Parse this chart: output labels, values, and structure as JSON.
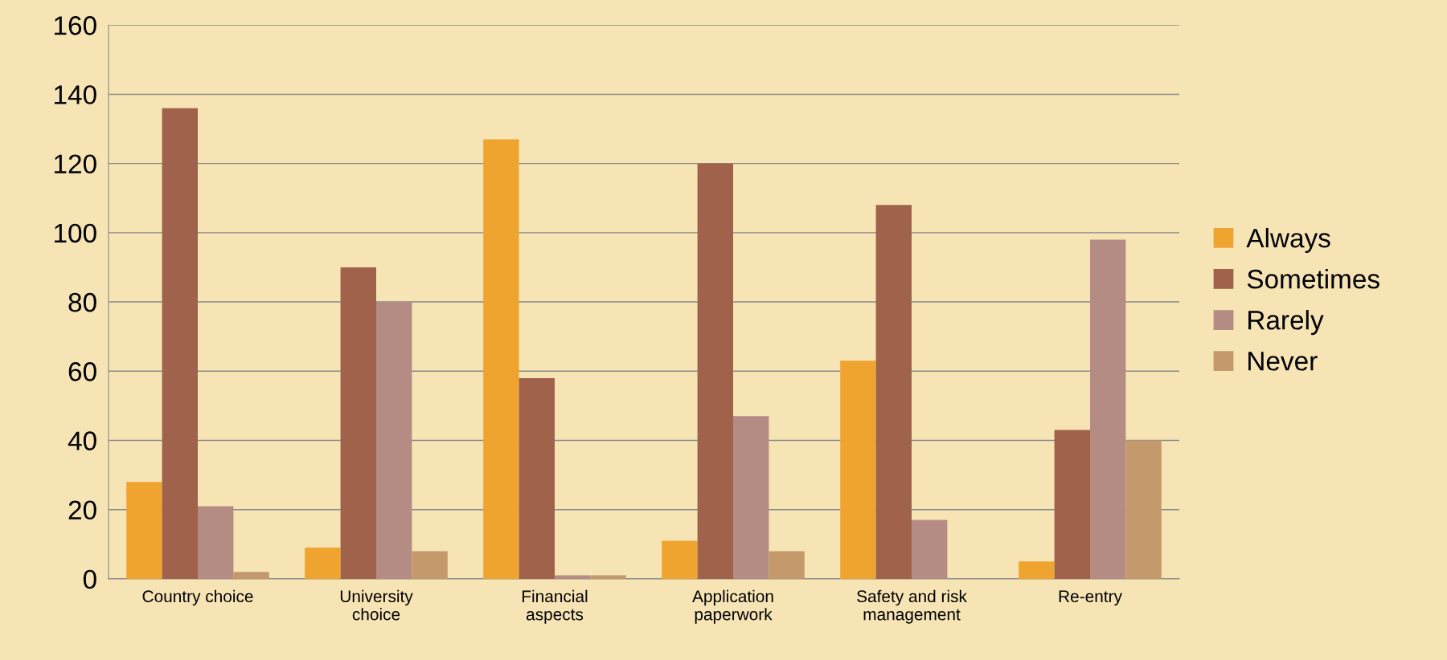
{
  "chart_data": {
    "type": "bar",
    "categories": [
      "Country choice",
      "University\nchoice",
      "Financial\naspects",
      "Application\npaperwork",
      "Safety and risk\nmanagement",
      "Re-entry"
    ],
    "series": [
      {
        "name": "Always",
        "color": "#f0a430",
        "values": [
          28,
          9,
          127,
          11,
          63,
          5
        ]
      },
      {
        "name": "Sometimes",
        "color": "#a0624b",
        "values": [
          136,
          90,
          58,
          120,
          108,
          43
        ]
      },
      {
        "name": "Rarely",
        "color": "#b58c84",
        "values": [
          21,
          80,
          1,
          47,
          17,
          98
        ]
      },
      {
        "name": "Never",
        "color": "#c49a6c",
        "values": [
          2,
          8,
          1,
          8,
          0,
          40
        ]
      }
    ],
    "ylim": [
      0,
      160
    ],
    "yticks": [
      0,
      20,
      40,
      60,
      80,
      100,
      120,
      140,
      160
    ],
    "grid": "y",
    "legend": "right"
  }
}
